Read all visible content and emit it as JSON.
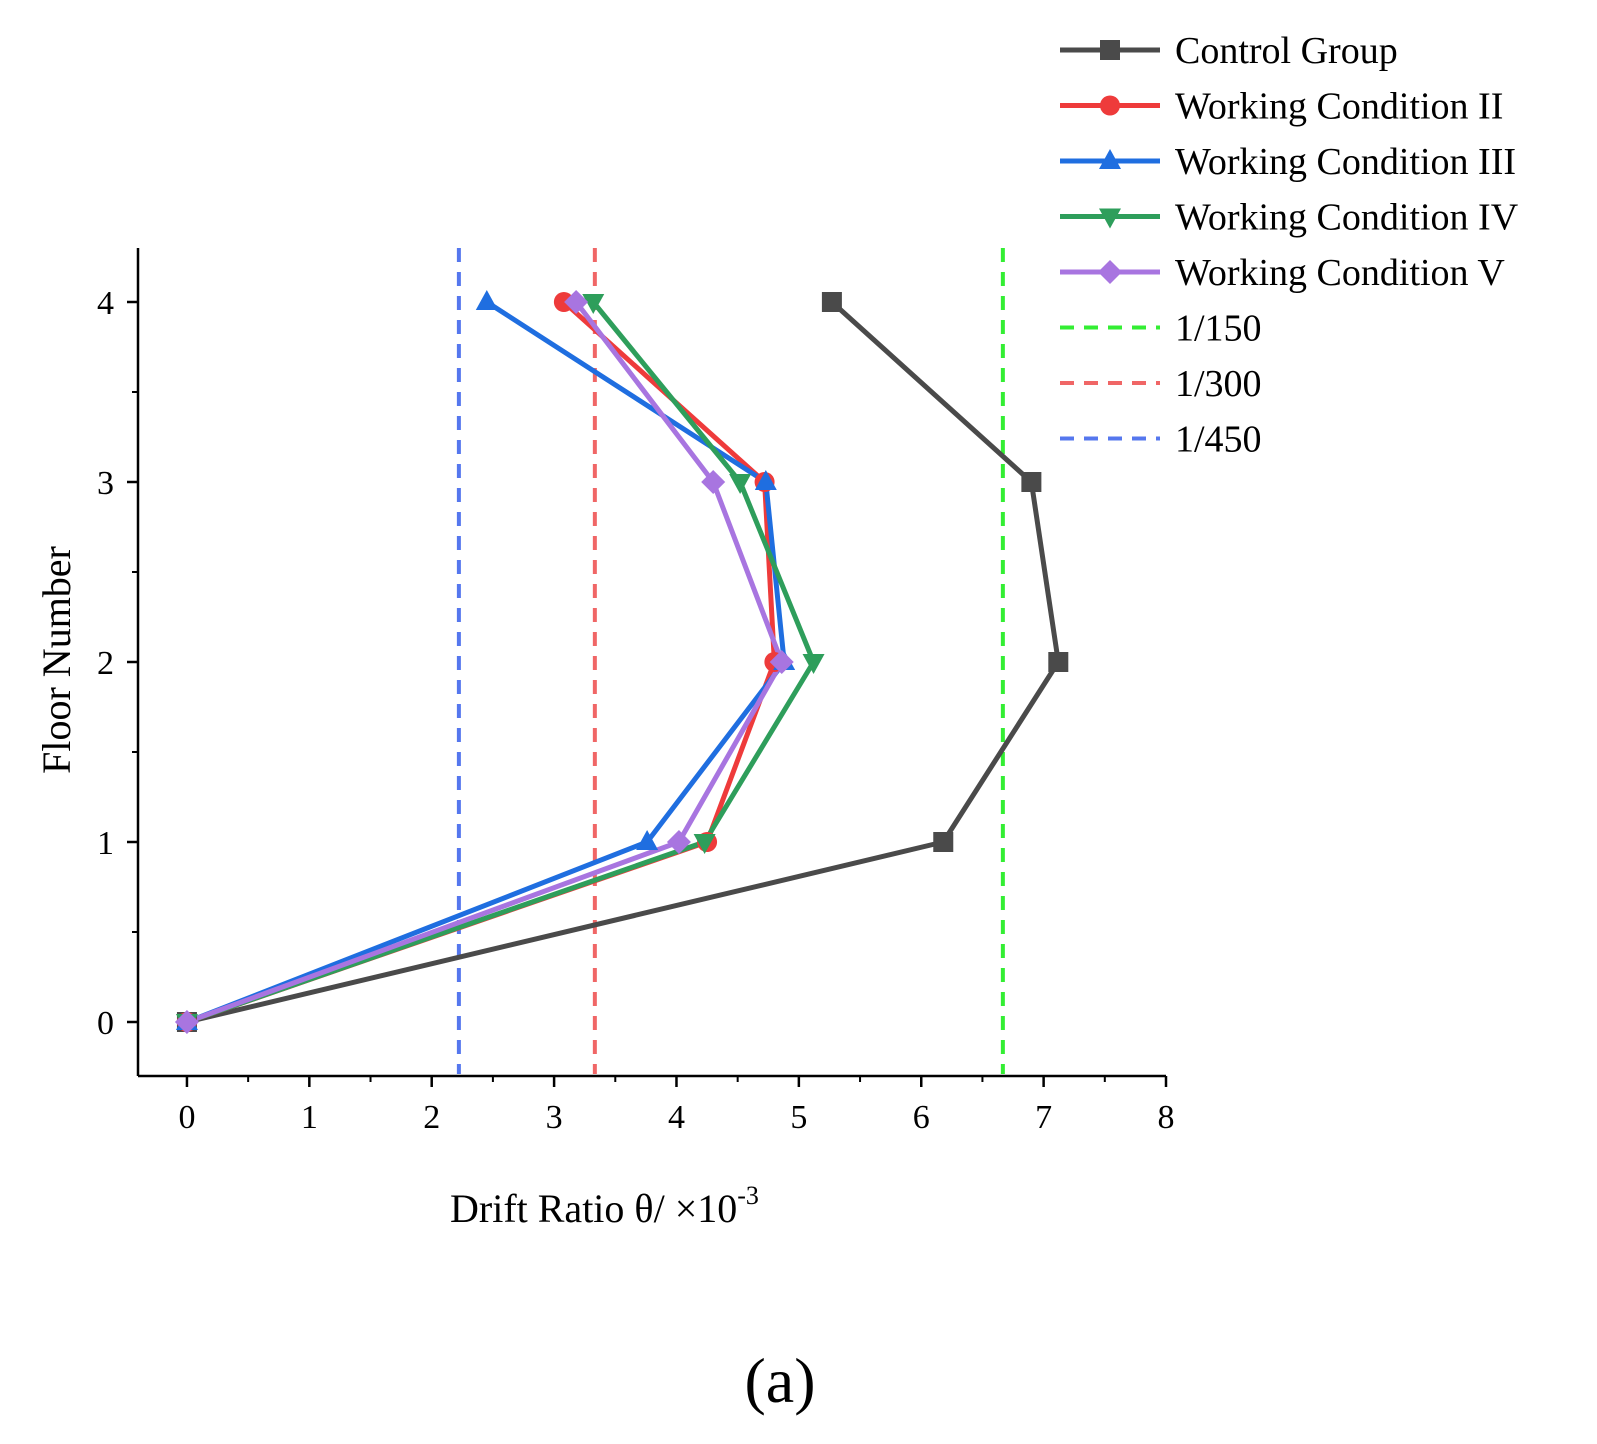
{
  "chart_data": {
    "type": "line",
    "title": "",
    "xlabel": "Drift Ratio θ/ ×10",
    "xlabel_exponent": "-3",
    "ylabel": "Floor Number",
    "xlim": [
      -0.4,
      8
    ],
    "ylim": [
      -0.3,
      4.3
    ],
    "x_ticks": [
      0,
      1,
      2,
      3,
      4,
      5,
      6,
      7,
      8
    ],
    "y_ticks": [
      0,
      1,
      2,
      3,
      4
    ],
    "grid": false,
    "legend_position": "top-right",
    "panel_label": "(a)",
    "series": [
      {
        "name": "Control Group",
        "color": "#4a4a4a",
        "marker": "square",
        "x": [
          0,
          6.18,
          7.12,
          6.9,
          5.27
        ],
        "y": [
          0,
          1,
          2,
          3,
          4
        ]
      },
      {
        "name": "Working Condition II",
        "color": "#ee3b3b",
        "marker": "circle",
        "x": [
          0,
          4.25,
          4.8,
          4.72,
          3.08
        ],
        "y": [
          0,
          1,
          2,
          3,
          4
        ]
      },
      {
        "name": "Working Condition III",
        "color": "#1f6ee0",
        "marker": "triangle-up",
        "x": [
          0,
          3.76,
          4.88,
          4.73,
          2.45
        ],
        "y": [
          0,
          1,
          2,
          3,
          4
        ]
      },
      {
        "name": "Working Condition IV",
        "color": "#2e9e5b",
        "marker": "triangle-down",
        "x": [
          0,
          4.23,
          5.12,
          4.52,
          3.32
        ],
        "y": [
          0,
          1,
          2,
          3,
          4
        ]
      },
      {
        "name": "Working Condition V",
        "color": "#a875e0",
        "marker": "diamond",
        "x": [
          0,
          4.02,
          4.86,
          4.3,
          3.18
        ],
        "y": [
          0,
          1,
          2,
          3,
          4
        ]
      }
    ],
    "reference_lines": [
      {
        "name": "1/150",
        "color": "#33ee33",
        "x": 6.667
      },
      {
        "name": "1/300",
        "color": "#f06666",
        "x": 3.333
      },
      {
        "name": "1/450",
        "color": "#5577ee",
        "x": 2.222
      }
    ]
  }
}
